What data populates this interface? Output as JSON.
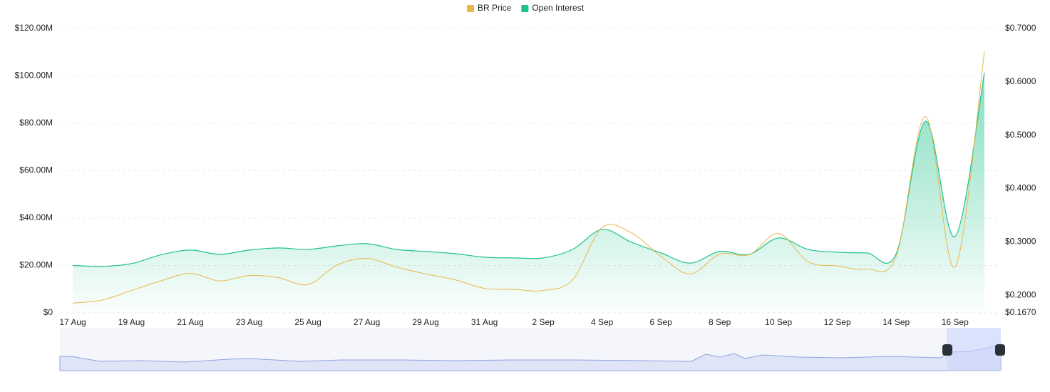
{
  "chart_data": {
    "type": "line",
    "categories": [
      "17 Aug",
      null,
      "19 Aug",
      null,
      "21 Aug",
      null,
      "23 Aug",
      null,
      "25 Aug",
      null,
      "27 Aug",
      null,
      "29 Aug",
      null,
      "31 Aug",
      null,
      "2 Sep",
      null,
      "4 Sep",
      null,
      "6 Sep",
      null,
      "8 Sep",
      null,
      "10 Sep",
      null,
      "12 Sep",
      null,
      "14 Sep",
      null,
      "16 Sep",
      null
    ],
    "series": [
      {
        "name": "BR Price",
        "color": "#e8b84a",
        "axis": "y2",
        "values": [
          0.1853,
          0.191,
          0.209,
          0.227,
          0.241,
          0.227,
          0.237,
          0.233,
          0.22,
          0.257,
          0.269,
          0.253,
          0.24,
          0.229,
          0.213,
          0.211,
          0.209,
          0.229,
          0.327,
          0.317,
          0.273,
          0.24,
          0.277,
          0.276,
          0.316,
          0.263,
          0.255,
          0.249,
          0.273,
          0.535,
          0.253,
          0.657
        ]
      },
      {
        "name": "Open Interest",
        "color": "#1fc28b",
        "area": true,
        "values": [
          20,
          19.6,
          20.8,
          24.5,
          26.5,
          24.7,
          26.5,
          27.4,
          26.8,
          28.3,
          29.2,
          26.8,
          25.9,
          25,
          23.5,
          23.2,
          23.2,
          26.8,
          35.2,
          29.8,
          25.3,
          21,
          25.9,
          24.7,
          31.6,
          26.8,
          25.6,
          25.3,
          25,
          80.9,
          32.2,
          101.4
        ]
      }
    ],
    "ylim": [
      0,
      120
    ],
    "yticks": [
      {
        "value": 0,
        "label": "$0"
      },
      {
        "value": 20,
        "label": "$20.00M"
      },
      {
        "value": 40,
        "label": "$40.00M"
      },
      {
        "value": 60,
        "label": "$60.00M"
      },
      {
        "value": 80,
        "label": "$80.00M"
      },
      {
        "value": 100,
        "label": "$100.00M"
      },
      {
        "value": 120,
        "label": "$120.00M"
      }
    ],
    "y2lim": [
      0.167,
      0.7
    ],
    "y2ticks": [
      {
        "value": 0.167,
        "label": "$0.1670"
      },
      {
        "value": 0.2,
        "label": "$0.2000"
      },
      {
        "value": 0.3,
        "label": "$0.3000"
      },
      {
        "value": 0.4,
        "label": "$0.4000"
      },
      {
        "value": 0.5,
        "label": "$0.5000"
      },
      {
        "value": 0.6,
        "label": "$0.6000"
      },
      {
        "value": 0.7,
        "label": "$0.7000"
      }
    ],
    "grid": true,
    "legend": "top"
  }
}
